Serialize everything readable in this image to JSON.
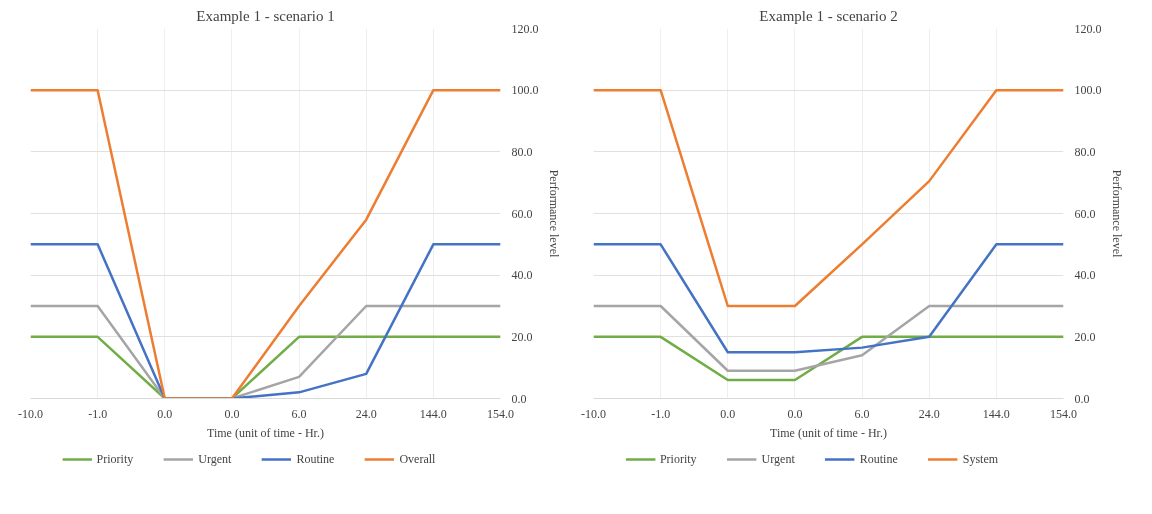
{
  "chart_data": [
    {
      "type": "line",
      "title": "Example 1 - scenario 1",
      "xlabel": "Time (unit of time - Hr.)",
      "ylabel": "Performance level",
      "categories": [
        "-10.0",
        "-1.0",
        "0.0",
        "0.0",
        "6.0",
        "24.0",
        "144.0",
        "154.0"
      ],
      "ylim": [
        0,
        120
      ],
      "yticks": [
        {
          "value": 0,
          "label": "0.0"
        },
        {
          "value": 20,
          "label": "20.0"
        },
        {
          "value": 40,
          "label": "40.0"
        },
        {
          "value": 60,
          "label": "60.0"
        },
        {
          "value": 80,
          "label": "80.0"
        },
        {
          "value": 100,
          "label": "100.0"
        },
        {
          "value": 120,
          "label": "120.0"
        }
      ],
      "grid": true,
      "legend": "bottom",
      "marker": "none",
      "line_style": "solid",
      "series": [
        {
          "name": "Priority",
          "color": "#70ad47",
          "values": [
            20,
            20,
            0,
            0,
            20,
            20,
            20,
            20
          ]
        },
        {
          "name": "Urgent",
          "color": "#a5a5a5",
          "values": [
            30,
            30,
            0,
            0,
            7,
            30,
            30,
            30
          ]
        },
        {
          "name": "Routine",
          "color": "#4472c4",
          "values": [
            50,
            50,
            0,
            0,
            2,
            8,
            50,
            50
          ]
        },
        {
          "name": "Overall",
          "color": "#ed7d31",
          "values": [
            100,
            100,
            0,
            0,
            30,
            58,
            100,
            100
          ]
        }
      ]
    },
    {
      "type": "line",
      "title": "Example 1 - scenario 2",
      "xlabel": "Time (unit of time - Hr.)",
      "ylabel": "Performance level",
      "categories": [
        "-10.0",
        "-1.0",
        "0.0",
        "0.0",
        "6.0",
        "24.0",
        "144.0",
        "154.0"
      ],
      "ylim": [
        0,
        120
      ],
      "yticks": [
        {
          "value": 0,
          "label": "0.0"
        },
        {
          "value": 20,
          "label": "20.0"
        },
        {
          "value": 40,
          "label": "40.0"
        },
        {
          "value": 60,
          "label": "60.0"
        },
        {
          "value": 80,
          "label": "80.0"
        },
        {
          "value": 100,
          "label": "100.0"
        },
        {
          "value": 120,
          "label": "120.0"
        }
      ],
      "grid": true,
      "legend": "bottom",
      "marker": "none",
      "line_style": "solid",
      "series": [
        {
          "name": "Priority",
          "color": "#70ad47",
          "values": [
            20,
            20,
            6,
            6,
            20,
            20,
            20,
            20
          ]
        },
        {
          "name": "Urgent",
          "color": "#a5a5a5",
          "values": [
            30,
            30,
            9,
            9,
            14,
            30,
            30,
            30
          ]
        },
        {
          "name": "Routine",
          "color": "#4472c4",
          "values": [
            50,
            50,
            15,
            15,
            16.5,
            20,
            50,
            50
          ]
        },
        {
          "name": "System",
          "color": "#ed7d31",
          "values": [
            100,
            100,
            30,
            30,
            50,
            70.5,
            100,
            100
          ]
        }
      ]
    }
  ]
}
